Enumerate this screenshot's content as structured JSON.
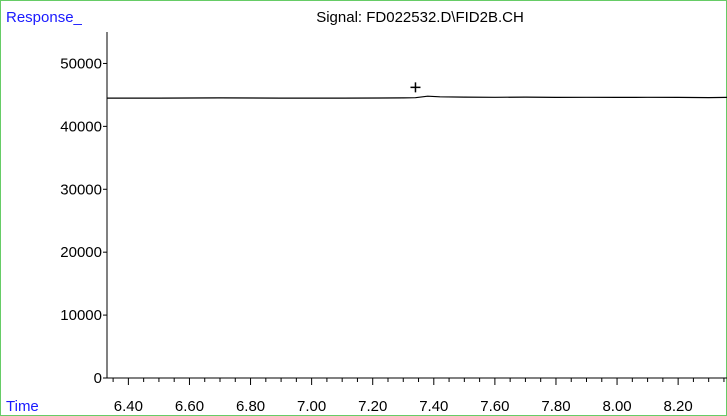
{
  "chart_data": {
    "type": "line",
    "title": "Signal: FD022532.D\\FID2B.CH",
    "ylabel": "Response_",
    "xlabel": "Time",
    "xlim": [
      6.33,
      8.36
    ],
    "ylim": [
      0,
      55000
    ],
    "x_ticks": [
      6.4,
      6.6,
      6.8,
      7.0,
      7.2,
      7.4,
      7.6,
      7.8,
      8.0,
      8.2
    ],
    "x_tick_labels": [
      "6.40",
      "6.60",
      "6.80",
      "7.00",
      "7.20",
      "7.40",
      "7.60",
      "7.80",
      "8.00",
      "8.20"
    ],
    "y_ticks": [
      0,
      10000,
      20000,
      30000,
      40000,
      50000
    ],
    "y_tick_labels": [
      "0",
      "10000",
      "20000",
      "30000",
      "40000",
      "50000"
    ],
    "x_minor_step": 0.05,
    "series": [
      {
        "x": [
          6.33,
          6.5,
          6.7,
          6.9,
          7.1,
          7.3,
          7.34,
          7.38,
          7.42,
          7.5,
          7.6,
          7.7,
          7.8,
          7.9,
          8.0,
          8.1,
          8.2,
          8.3,
          8.36
        ],
        "y": [
          44500,
          44500,
          44520,
          44500,
          44500,
          44520,
          44550,
          44800,
          44700,
          44650,
          44620,
          44650,
          44600,
          44620,
          44600,
          44620,
          44600,
          44580,
          44600
        ]
      }
    ],
    "markers": [
      {
        "symbol": "+",
        "x": 7.34,
        "y": 46200
      }
    ],
    "grid": false,
    "legend": "none",
    "colors": {
      "line": "#000000",
      "axis": "#000000",
      "axis_labels": "#1a1aff",
      "frame": "#66cc66"
    }
  }
}
